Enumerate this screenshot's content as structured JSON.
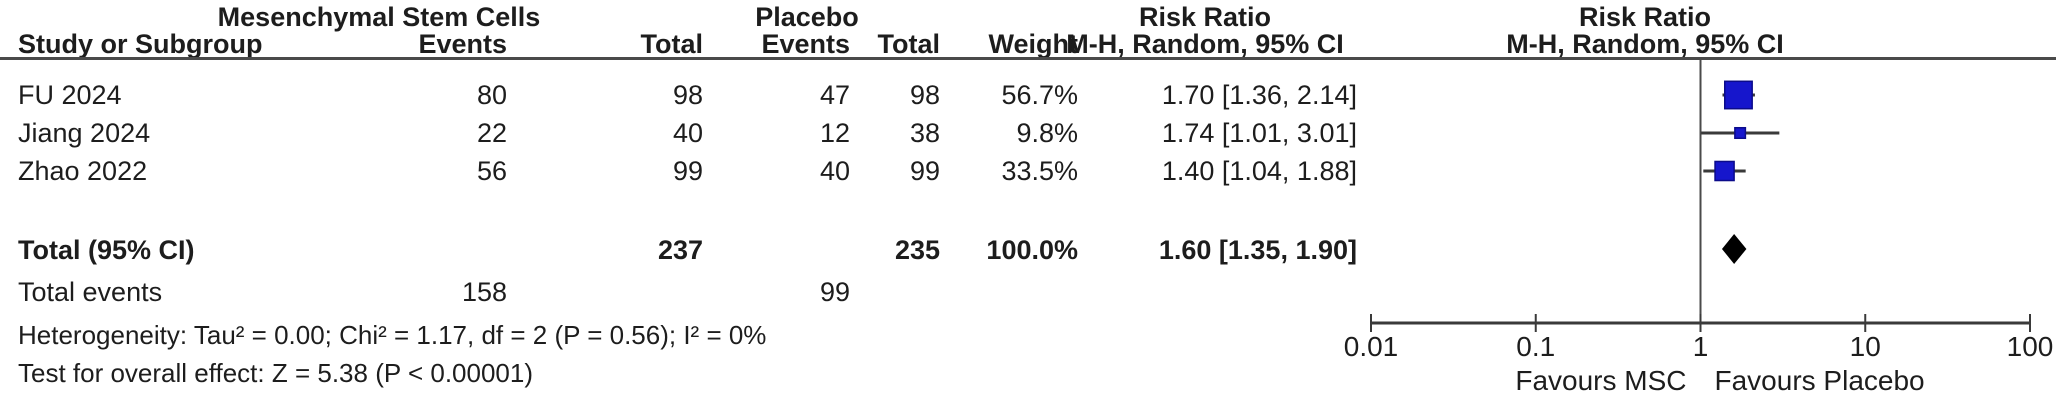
{
  "figure": {
    "groups": {
      "msc": "Mesenchymal Stem Cells",
      "placebo": "Placebo",
      "rr_stat": "Risk Ratio",
      "rr_plot": "Risk Ratio"
    },
    "columns": {
      "study": "Study or Subgroup",
      "msc_events": "Events",
      "msc_total": "Total",
      "placebo_events": "Events",
      "placebo_total": "Total",
      "weight": "Weight",
      "stat_method": "M-H, Random, 95% CI",
      "plot_method": "M-H, Random, 95% CI"
    },
    "studies": [
      {
        "name": "FU 2024",
        "msc_events": "80",
        "msc_total": "98",
        "placebo_events": "47",
        "placebo_total": "98",
        "weight": "56.7%",
        "weight_pct": 56.7,
        "rr_text": "1.70 [1.36, 2.14]",
        "rr": 1.7,
        "ci_low": 1.36,
        "ci_high": 2.14
      },
      {
        "name": "Jiang 2024",
        "msc_events": "22",
        "msc_total": "40",
        "placebo_events": "12",
        "placebo_total": "38",
        "weight": "9.8%",
        "weight_pct": 9.8,
        "rr_text": "1.74 [1.01, 3.01]",
        "rr": 1.74,
        "ci_low": 1.01,
        "ci_high": 3.01
      },
      {
        "name": "Zhao 2022",
        "msc_events": "56",
        "msc_total": "99",
        "placebo_events": "40",
        "placebo_total": "99",
        "weight": "33.5%",
        "weight_pct": 33.5,
        "rr_text": "1.40 [1.04, 1.88]",
        "rr": 1.4,
        "ci_low": 1.04,
        "ci_high": 1.88
      }
    ],
    "total": {
      "label": "Total (95% CI)",
      "msc_total": "237",
      "placebo_total": "235",
      "weight": "100.0%",
      "rr_text": "1.60 [1.35, 1.90]",
      "rr": 1.6,
      "ci_low": 1.35,
      "ci_high": 1.9
    },
    "total_events": {
      "label": "Total events",
      "msc": "158",
      "placebo": "99"
    },
    "heterogeneity": "Heterogeneity: Tau² = 0.00; Chi² = 1.17, df = 2 (P = 0.56); I² = 0%",
    "overall_effect": "Test for overall effect: Z = 5.38 (P < 0.00001)",
    "axis": {
      "ticks": [
        "0.01",
        "0.1",
        "1",
        "10",
        "100"
      ],
      "favours_left": "Favours MSC",
      "favours_right": "Favours Placebo"
    },
    "colors": {
      "square": "#1616cc",
      "square_border": "#0b0b8a",
      "diamond": "#000000",
      "ci_line": "#3a3a3a",
      "axis": "#3a3a3a",
      "null_line": "#4a4a4a"
    }
  },
  "chart_data": {
    "type": "forest",
    "title": "Risk Ratio M-H, Random, 95% CI",
    "x_scale": "log",
    "x_ticks": [
      0.01,
      0.1,
      1,
      10,
      100
    ],
    "x_range": [
      0.01,
      100
    ],
    "null_value": 1,
    "x_axis_labels": [
      "Favours MSC",
      "Favours Placebo"
    ],
    "comparison_groups": [
      "Mesenchymal Stem Cells",
      "Placebo"
    ],
    "studies": [
      {
        "study": "FU 2024",
        "treatment_events": 80,
        "treatment_total": 98,
        "control_events": 47,
        "control_total": 98,
        "weight_pct": 56.7,
        "rr": 1.7,
        "ci": [
          1.36,
          2.14
        ]
      },
      {
        "study": "Jiang 2024",
        "treatment_events": 22,
        "treatment_total": 40,
        "control_events": 12,
        "control_total": 38,
        "weight_pct": 9.8,
        "rr": 1.74,
        "ci": [
          1.01,
          3.01
        ]
      },
      {
        "study": "Zhao 2022",
        "treatment_events": 56,
        "treatment_total": 99,
        "control_events": 40,
        "control_total": 99,
        "weight_pct": 33.5,
        "rr": 1.4,
        "ci": [
          1.04,
          1.88
        ]
      }
    ],
    "total": {
      "rr": 1.6,
      "ci": [
        1.35,
        1.9
      ],
      "treatment_total": 237,
      "control_total": 235,
      "treatment_events": 158,
      "control_events": 99,
      "weight_pct": 100.0
    },
    "heterogeneity": {
      "tau2": 0.0,
      "chi2": 1.17,
      "df": 2,
      "p": 0.56,
      "i2_pct": 0
    },
    "overall_effect": {
      "z": 5.38,
      "p": "< 0.00001"
    }
  }
}
